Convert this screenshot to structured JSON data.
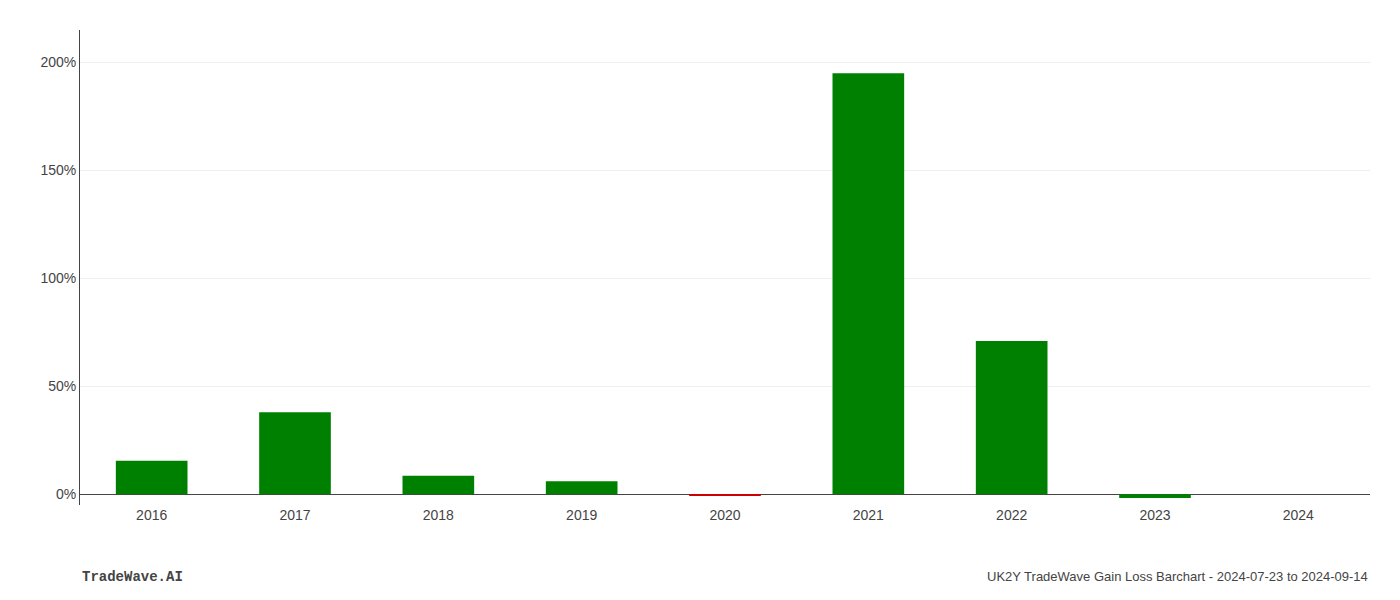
{
  "chart_data": {
    "type": "bar",
    "categories": [
      "2016",
      "2017",
      "2018",
      "2019",
      "2020",
      "2021",
      "2022",
      "2023",
      "2024"
    ],
    "values": [
      0.155,
      0.38,
      0.085,
      0.06,
      -0.008,
      1.95,
      0.71,
      -0.018,
      0.0
    ],
    "colors": [
      "#008000",
      "#008000",
      "#008000",
      "#008000",
      "#cc0000",
      "#008000",
      "#008000",
      "#008000",
      "#008000"
    ],
    "ylim": [
      -0.05,
      2.15
    ],
    "yticks": [
      {
        "value": 0.0,
        "label": "0%"
      },
      {
        "value": 0.5,
        "label": "50%"
      },
      {
        "value": 1.0,
        "label": "100%"
      },
      {
        "value": 1.5,
        "label": "150%"
      },
      {
        "value": 2.0,
        "label": "200%"
      }
    ],
    "grid": true,
    "annotations": [
      "TradeWave.AI",
      "UK2Y TradeWave Gain Loss Barchart - 2024-07-23 to 2024-09-14"
    ]
  }
}
